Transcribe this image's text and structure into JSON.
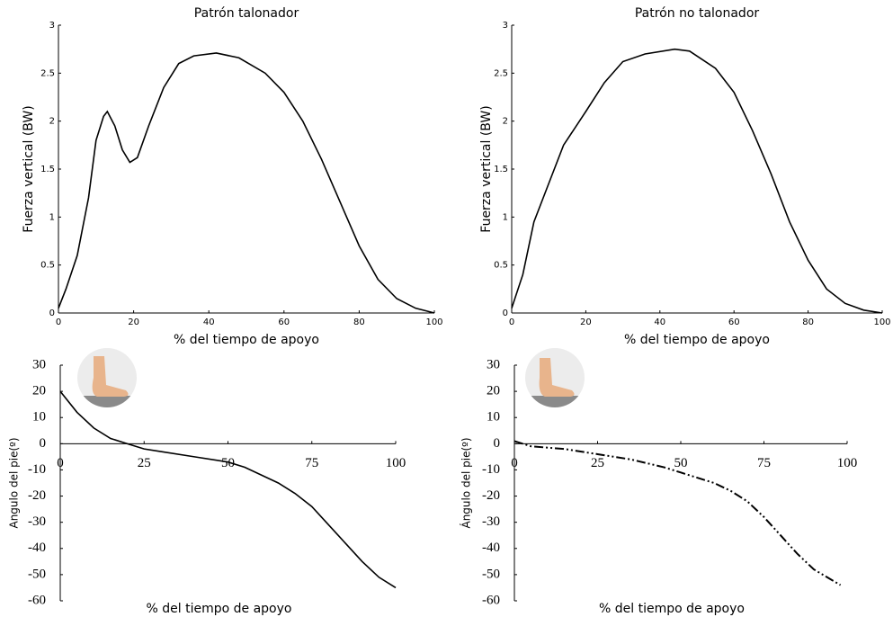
{
  "chart_data": [
    {
      "type": "line",
      "title": "Patrón talonador",
      "xlabel": "% del tiempo de apoyo",
      "ylabel": "Fuerza vertical (BW)",
      "x": [
        0,
        2,
        5,
        8,
        10,
        12,
        13,
        15,
        17,
        19,
        21,
        24,
        28,
        32,
        36,
        42,
        48,
        55,
        60,
        65,
        70,
        75,
        80,
        85,
        90,
        95,
        100
      ],
      "series": [
        {
          "color": "#000000",
          "line_style": "solid",
          "values": [
            0.05,
            0.25,
            0.6,
            1.2,
            1.8,
            2.05,
            2.1,
            1.95,
            1.7,
            1.57,
            1.62,
            1.95,
            2.35,
            2.6,
            2.68,
            2.71,
            2.66,
            2.5,
            2.3,
            2.0,
            1.6,
            1.15,
            0.7,
            0.35,
            0.15,
            0.05,
            0.0
          ]
        }
      ],
      "xlim": [
        0,
        100
      ],
      "xticks": [
        0,
        20,
        40,
        60,
        80,
        100
      ],
      "ylim": [
        0,
        3
      ],
      "yticks": [
        0,
        0.5,
        1,
        1.5,
        2,
        2.5,
        3
      ]
    },
    {
      "type": "line",
      "title": "Patrón no talonador",
      "xlabel": "% del tiempo de apoyo",
      "ylabel": "Fuerza vertical (BW)",
      "x": [
        0,
        3,
        6,
        10,
        14,
        20,
        25,
        30,
        36,
        44,
        48,
        55,
        60,
        65,
        70,
        75,
        80,
        85,
        90,
        95,
        100
      ],
      "series": [
        {
          "color": "#000000",
          "line_style": "solid",
          "values": [
            0.05,
            0.4,
            0.95,
            1.35,
            1.75,
            2.1,
            2.4,
            2.62,
            2.7,
            2.75,
            2.73,
            2.55,
            2.3,
            1.9,
            1.45,
            0.95,
            0.55,
            0.25,
            0.1,
            0.03,
            0.0
          ]
        }
      ],
      "xlim": [
        0,
        100
      ],
      "xticks": [
        0,
        20,
        40,
        60,
        80,
        100
      ],
      "ylim": [
        0,
        3
      ],
      "yticks": [
        0,
        0.5,
        1,
        1.5,
        2,
        2.5,
        3
      ]
    },
    {
      "type": "line",
      "xlabel": "% del tiempo de apoyo",
      "ylabel": "Angulo del pie(º)",
      "x": [
        0,
        5,
        10,
        15,
        20,
        25,
        30,
        40,
        50,
        55,
        60,
        65,
        70,
        75,
        80,
        85,
        90,
        95,
        100
      ],
      "series": [
        {
          "color": "#000000",
          "line_style": "solid",
          "values": [
            20,
            12,
            6,
            2,
            0,
            -2,
            -3,
            -5,
            -7,
            -9,
            -12,
            -15,
            -19,
            -24,
            -31,
            -38,
            -45,
            -51,
            -55
          ]
        }
      ],
      "xlim": [
        0,
        100
      ],
      "xticks": [
        0,
        25,
        50,
        75,
        100
      ],
      "ylim": [
        -60,
        30
      ],
      "yticks": [
        30,
        20,
        10,
        0,
        -10,
        -20,
        -30,
        -40,
        -50,
        -60
      ]
    },
    {
      "type": "line",
      "xlabel": "% del tiempo de apoyo",
      "ylabel": "Ángulo del pie(º)",
      "x": [
        0,
        5,
        15,
        25,
        35,
        45,
        50,
        60,
        65,
        70,
        75,
        80,
        85,
        90,
        98
      ],
      "series": [
        {
          "color": "#000000",
          "line_style": "dashdot",
          "values": [
            1,
            -1,
            -2,
            -4,
            -6,
            -9,
            -11,
            -15,
            -18,
            -22,
            -28,
            -35,
            -42,
            -48,
            -54
          ]
        }
      ],
      "xlim": [
        0,
        100
      ],
      "xticks": [
        0,
        25,
        50,
        75,
        100
      ],
      "ylim": [
        -60,
        30
      ],
      "yticks": [
        30,
        20,
        10,
        0,
        -10,
        -20,
        -30,
        -40,
        -50,
        -60
      ]
    }
  ]
}
